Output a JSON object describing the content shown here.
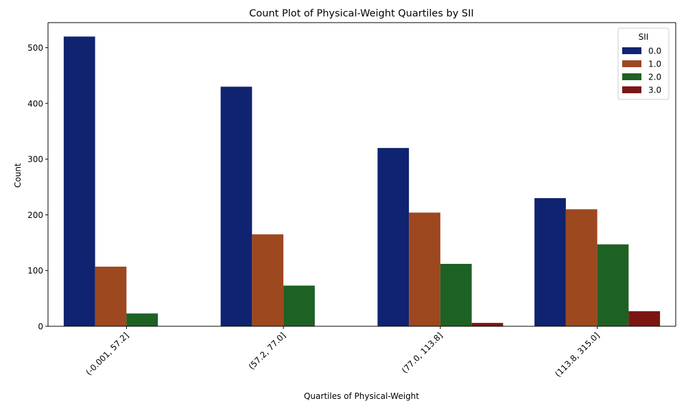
{
  "chart_data": {
    "type": "bar",
    "title": "Count Plot of Physical-Weight Quartiles by SII",
    "xlabel": "Quartiles of Physical-Weight",
    "ylabel": "Count",
    "categories": [
      "(-0.001, 57.2]",
      "(57.2, 77.0]",
      "(77.0, 113.8]",
      "(113.8, 315.0]"
    ],
    "ylim": [
      0,
      545
    ],
    "yticks": [
      0,
      100,
      200,
      300,
      400,
      500
    ],
    "legend": {
      "title": "SII",
      "placement": "top-right"
    },
    "grid": false,
    "series": [
      {
        "name": "0.0",
        "color": "#0f2370",
        "values": [
          520,
          430,
          320,
          230
        ]
      },
      {
        "name": "1.0",
        "color": "#9e4820",
        "values": [
          107,
          165,
          204,
          210
        ]
      },
      {
        "name": "2.0",
        "color": "#1e6124",
        "values": [
          23,
          73,
          112,
          147
        ]
      },
      {
        "name": "3.0",
        "color": "#7c1613",
        "values": [
          0,
          0,
          6,
          27
        ]
      }
    ]
  }
}
